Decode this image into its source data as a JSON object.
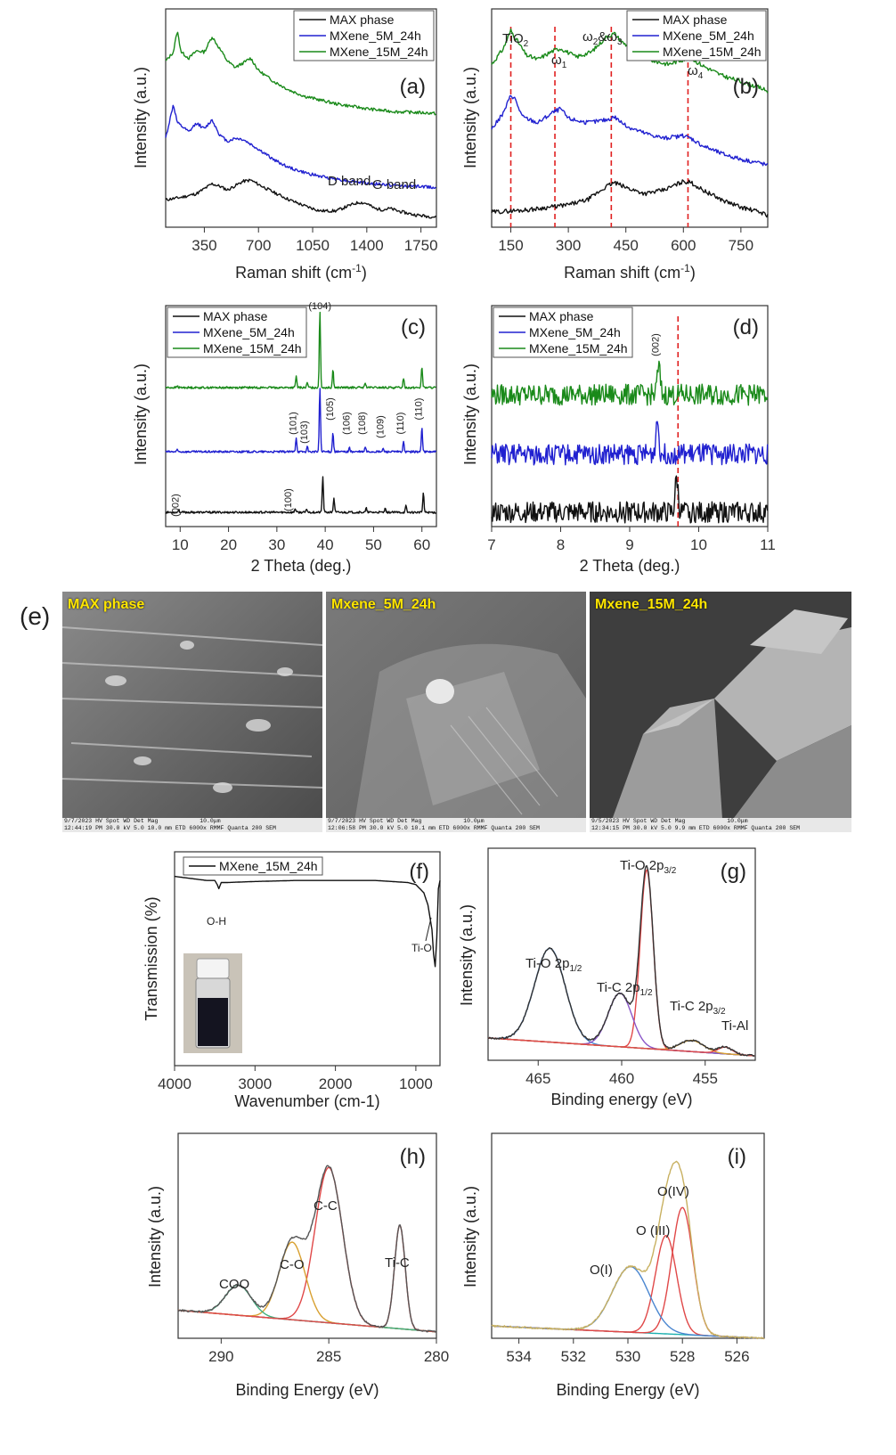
{
  "colors": {
    "max_phase": "#111111",
    "mxene_5m": "#2020d0",
    "mxene_15m": "#1a8a1a",
    "ref_line": "#e02020",
    "fit_red": "#e04848",
    "fit_purple": "#8a56c8",
    "fit_blue": "#4a86d0",
    "fit_cyan": "#1cb0b0",
    "fit_orange": "#d8a030",
    "fit_green": "#40b080",
    "fit_envelope": "#c8b060"
  },
  "legend": {
    "max_phase": "MAX phase",
    "mxene_5m": "MXene_5M_24h",
    "mxene_15m": "MXene_15M_24h"
  },
  "panels": {
    "a": {
      "letter": "(a)",
      "xlabel": "Raman shift (cm",
      "xlabel_sup": "-1",
      "xlabel_close": ")",
      "ylabel": "Intensity (a.u.)",
      "ticks": [
        "350",
        "700",
        "1050",
        "1400",
        "1750"
      ],
      "annotations": {
        "d_band": "D band",
        "g_band": "G band"
      }
    },
    "b": {
      "letter": "(b)",
      "xlabel": "Raman shift (cm",
      "xlabel_sup": "-1",
      "xlabel_close": ")",
      "ylabel": "Intensity (a.u.)",
      "ticks": [
        "150",
        "300",
        "450",
        "600",
        "750"
      ],
      "annotations": {
        "tio2": "TiO",
        "tio2_sub": "2",
        "w1": "ω",
        "w1_sub": "1",
        "w23_a": "ω",
        "w23_sub_a": "2",
        "w23_amp": "&ω",
        "w23_sub_b": "3",
        "w4": "ω",
        "w4_sub": "4"
      }
    },
    "c": {
      "letter": "(c)",
      "xlabel": "2 Theta (deg.)",
      "ylabel": "Intensity (a.u.)",
      "ticks": [
        "10",
        "20",
        "30",
        "40",
        "50",
        "60"
      ],
      "peak_labels_top": [
        "(104)"
      ],
      "peak_labels_blue": [
        "(101)",
        "(103)",
        "(105)",
        "(106)",
        "(108)",
        "(109)",
        "(110)",
        "(110)"
      ],
      "peak_labels_black": [
        "(002)",
        "(100)"
      ]
    },
    "d": {
      "letter": "(d)",
      "xlabel": "2 Theta (deg.)",
      "ylabel": "Intensity (a.u.)",
      "ticks": [
        "7",
        "8",
        "9",
        "10",
        "11"
      ],
      "peak_label": "(002)"
    },
    "e": {
      "letter": "(e)",
      "images": [
        {
          "caption": "MAX phase",
          "bar": [
            "9/7/2023",
            "HV",
            "Spot",
            "WD",
            "Det",
            "Mag",
            "10.0μm"
          ],
          "bar2": "12:44:19 PM 30.0 kV  5.0  10.0 mm ETD 6000x     RMMF Quanta 200 SEM"
        },
        {
          "caption": "Mxene_5M_24h",
          "bar": [
            "9/7/2023",
            "HV",
            "Spot",
            "WD",
            "Det",
            "Mag",
            "10.0μm"
          ],
          "bar2": "12:06:58 PM 30.0 kV  5.0  10.1 mm ETD 6000x     RMMF Quanta 200 SEM"
        },
        {
          "caption": "Mxene_15M_24h",
          "bar": [
            "9/5/2023",
            "HV",
            "Spot",
            "WD",
            "Det",
            "Mag",
            "10.0μm"
          ],
          "bar2": "12:34:15 PM 30.0 kV  5.0  9.9 mm ETD 6000x      RMMF Quanta 200 SEM"
        }
      ]
    },
    "f": {
      "letter": "(f)",
      "xlabel": "Wavenumber (cm-1)",
      "ylabel": "Transmission (%)",
      "legend": "MXene_15M_24h",
      "ticks": [
        "4000",
        "3000",
        "2000",
        "1000"
      ],
      "annotations": {
        "oh": "O-H",
        "tio": "Ti-O"
      }
    },
    "g": {
      "letter": "(g)",
      "xlabel": "Binding energy (eV)",
      "ylabel": "Intensity (a.u.)",
      "ticks": [
        "465",
        "460",
        "455"
      ],
      "annotations": {
        "tio_32": "Ti-O 2p",
        "tio_32_sub": "3/2",
        "tio_12": "Ti-O 2p",
        "tio_12_sub": "1/2",
        "tic_12": "Ti-C 2p",
        "tic_12_sub": "1/2",
        "tic_32": "Ti-C 2p",
        "tic_32_sub": "3/2",
        "tial": "Ti-Al"
      }
    },
    "h": {
      "letter": "(h)",
      "xlabel": "Binding Energy (eV)",
      "ylabel": "Intensity (a.u.)",
      "ticks": [
        "290",
        "285",
        "280"
      ],
      "annotations": {
        "cc": "C-C",
        "co": "C-O",
        "coo": "COO",
        "tic": "Ti-C"
      }
    },
    "i": {
      "letter": "(i)",
      "xlabel": "Binding Energy (eV)",
      "ylabel": "Intensity (a.u.)",
      "ticks": [
        "534",
        "532",
        "530",
        "528",
        "526"
      ],
      "annotations": {
        "oiv": "O(IV)",
        "oiii": "O (III)",
        "oi": "O(I)"
      }
    }
  },
  "chart_data": [
    {
      "panel": "a",
      "type": "line",
      "xlabel": "Raman shift (cm-1)",
      "ylabel": "Intensity (a.u.)",
      "xlim": [
        100,
        1850
      ],
      "grid": false,
      "legend_position": "top-right",
      "series": [
        {
          "name": "MAX phase",
          "x": [
            100,
            200,
            300,
            400,
            450,
            500,
            600,
            650,
            700,
            800,
            900,
            1000,
            1100,
            1200,
            1250,
            1300,
            1350,
            1400,
            1450,
            1500,
            1550,
            1600,
            1700,
            1800,
            1850
          ],
          "y": [
            0.3,
            0.34,
            0.4,
            0.56,
            0.52,
            0.46,
            0.6,
            0.62,
            0.55,
            0.42,
            0.3,
            0.2,
            0.12,
            0.12,
            0.17,
            0.22,
            0.26,
            0.24,
            0.16,
            0.14,
            0.16,
            0.12,
            0.06,
            0.03,
            0.02
          ]
        },
        {
          "name": "MXene_5M_24h",
          "x": [
            100,
            150,
            175,
            200,
            250,
            300,
            350,
            400,
            450,
            500,
            550,
            600,
            700,
            800,
            900,
            1000,
            1100,
            1200,
            1300,
            1400,
            1500,
            1600,
            1700,
            1800,
            1850
          ],
          "y": [
            1.3,
            1.85,
            1.55,
            1.5,
            1.4,
            1.55,
            1.45,
            1.6,
            1.35,
            1.25,
            1.3,
            1.28,
            1.12,
            0.95,
            0.82,
            0.74,
            0.68,
            0.64,
            0.6,
            0.57,
            0.55,
            0.53,
            0.52,
            0.51,
            0.5
          ]
        },
        {
          "name": "MXene_15M_24h",
          "x": [
            100,
            150,
            175,
            200,
            250,
            300,
            350,
            400,
            450,
            500,
            550,
            600,
            650,
            700,
            800,
            900,
            1000,
            1100,
            1200,
            1300,
            1400,
            1500,
            1600,
            1700,
            1800,
            1850
          ],
          "y": [
            2.55,
            2.7,
            3.05,
            2.7,
            2.6,
            2.72,
            2.7,
            2.95,
            2.75,
            2.55,
            2.45,
            2.52,
            2.6,
            2.4,
            2.22,
            2.08,
            1.98,
            1.92,
            1.86,
            1.82,
            1.78,
            1.75,
            1.73,
            1.72,
            1.71,
            1.7
          ]
        }
      ],
      "annotations": [
        {
          "text": "D band",
          "x": 1350
        },
        {
          "text": "G band",
          "x": 1580
        }
      ]
    },
    {
      "panel": "b",
      "type": "line",
      "xlabel": "Raman shift (cm-1)",
      "ylabel": "Intensity (a.u.)",
      "xlim": [
        100,
        820
      ],
      "reference_lines_x": [
        150,
        265,
        412,
        612
      ],
      "grid": false,
      "legend_position": "top-right",
      "series": [
        {
          "name": "MAX phase",
          "x": [
            100,
            150,
            200,
            250,
            300,
            350,
            400,
            420,
            450,
            500,
            550,
            600,
            620,
            650,
            700,
            750,
            800,
            820
          ],
          "y": [
            0.1,
            0.12,
            0.14,
            0.18,
            0.22,
            0.3,
            0.52,
            0.58,
            0.5,
            0.4,
            0.46,
            0.6,
            0.58,
            0.46,
            0.3,
            0.18,
            0.1,
            0.05
          ]
        },
        {
          "name": "MXene_5M_24h",
          "x": [
            100,
            130,
            150,
            160,
            180,
            220,
            260,
            280,
            300,
            350,
            400,
            420,
            450,
            500,
            550,
            600,
            620,
            650,
            700,
            750,
            800,
            820
          ],
          "y": [
            1.45,
            1.7,
            2.0,
            1.95,
            1.65,
            1.55,
            1.72,
            1.78,
            1.62,
            1.55,
            1.6,
            1.65,
            1.5,
            1.38,
            1.3,
            1.34,
            1.3,
            1.18,
            1.05,
            0.96,
            0.9,
            0.86
          ]
        },
        {
          "name": "MXene_15M_24h",
          "x": [
            100,
            130,
            150,
            160,
            190,
            220,
            260,
            280,
            320,
            360,
            400,
            420,
            440,
            480,
            520,
            560,
            600,
            620,
            650,
            700,
            750,
            800,
            820
          ],
          "y": [
            2.5,
            2.75,
            3.05,
            2.95,
            2.65,
            2.58,
            2.72,
            2.76,
            2.62,
            2.7,
            2.95,
            3.0,
            2.86,
            2.7,
            2.56,
            2.5,
            2.58,
            2.6,
            2.48,
            2.32,
            2.22,
            2.12,
            2.06
          ]
        }
      ],
      "annotations": [
        {
          "text": "TiO2",
          "x": 150
        },
        {
          "text": "ω1",
          "x": 265
        },
        {
          "text": "ω2&ω3",
          "x": 412
        },
        {
          "text": "ω4",
          "x": 612
        }
      ]
    },
    {
      "panel": "c",
      "type": "line",
      "xlabel": "2 Theta (deg.)",
      "ylabel": "Intensity (a.u.)",
      "xlim": [
        7,
        63
      ],
      "grid": false,
      "legend_position": "top-left",
      "series": [
        {
          "name": "MAX phase",
          "peaks_x": [
            9.7,
            33.8,
            36.2,
            39.5,
            41.8,
            48.5,
            52.4,
            56.7,
            60.3
          ],
          "peaks_h": [
            0.03,
            0.05,
            0.04,
            0.45,
            0.18,
            0.05,
            0.04,
            0.08,
            0.24
          ],
          "baseline": 0
        },
        {
          "name": "MXene_5M_24h",
          "peaks_x": [
            9.4,
            34.0,
            36.3,
            38.9,
            41.6,
            45.0,
            48.3,
            52.0,
            56.2,
            60.0
          ],
          "peaks_h": [
            0.02,
            0.18,
            0.06,
            0.8,
            0.24,
            0.05,
            0.06,
            0.04,
            0.12,
            0.3
          ],
          "baseline": 1
        },
        {
          "name": "MXene_15M_24h",
          "peaks_x": [
            9.4,
            34.0,
            36.3,
            38.9,
            41.6,
            48.3,
            56.2,
            60.0
          ],
          "peaks_h": [
            0.02,
            0.14,
            0.06,
            0.95,
            0.22,
            0.06,
            0.12,
            0.26
          ],
          "baseline": 2
        }
      ],
      "peak_labels": [
        {
          "text": "(104)",
          "x": 38.9
        },
        {
          "text": "(101)",
          "x": 34.0
        },
        {
          "text": "(103)",
          "x": 36.3
        },
        {
          "text": "(105)",
          "x": 41.6
        },
        {
          "text": "(106)",
          "x": 45.0
        },
        {
          "text": "(108)",
          "x": 48.3
        },
        {
          "text": "(109)",
          "x": 52.0
        },
        {
          "text": "(110)",
          "x": 56.2
        },
        {
          "text": "(110)",
          "x": 60.0
        },
        {
          "text": "(002)",
          "x": 9.7
        },
        {
          "text": "(100)",
          "x": 33.0
        }
      ]
    },
    {
      "panel": "d",
      "type": "line",
      "xlabel": "2 Theta (deg.)",
      "ylabel": "Intensity (a.u.)",
      "xlim": [
        7,
        11
      ],
      "reference_lines_x": [
        9.7
      ],
      "grid": false,
      "legend_position": "top-left",
      "series": [
        {
          "name": "MAX phase",
          "peak_x": 9.68,
          "peak_h": 0.55,
          "baseline": 0
        },
        {
          "name": "MXene_5M_24h",
          "peak_x": 9.4,
          "peak_h": 0.55,
          "baseline": 1
        },
        {
          "name": "MXene_15M_24h",
          "peak_x": 9.42,
          "peak_h": 0.45,
          "baseline": 2
        }
      ],
      "peak_labels": [
        {
          "text": "(002)",
          "x": 9.42
        }
      ]
    },
    {
      "panel": "f",
      "type": "line",
      "xlabel": "Wavenumber (cm-1)",
      "ylabel": "Transmission (%)",
      "xlim": [
        4000,
        700
      ],
      "grid": false,
      "legend_position": "top-left",
      "series": [
        {
          "name": "MXene_15M_24h",
          "x": [
            4000,
            3800,
            3600,
            3500,
            3470,
            3450,
            3420,
            3350,
            3000,
            2500,
            2000,
            1500,
            1300,
            1100,
            1000,
            900,
            850,
            800,
            780,
            760,
            740,
            720,
            700
          ],
          "y": [
            0.88,
            0.87,
            0.86,
            0.86,
            0.84,
            0.82,
            0.85,
            0.85,
            0.855,
            0.86,
            0.86,
            0.86,
            0.855,
            0.85,
            0.84,
            0.8,
            0.74,
            0.62,
            0.5,
            0.44,
            0.58,
            0.82,
            0.86
          ]
        }
      ],
      "annotations": [
        {
          "text": "O-H",
          "x": 3450
        },
        {
          "text": "Ti-O",
          "x": 760
        }
      ]
    },
    {
      "panel": "g",
      "type": "line",
      "xlabel": "Binding energy (eV)",
      "ylabel": "Intensity (a.u.)",
      "xlim": [
        468,
        452
      ],
      "grid": false,
      "components": [
        {
          "label": "Ti-O 2p3/2",
          "center": 458.5,
          "height": 0.8,
          "width": 0.55
        },
        {
          "label": "Ti-O 2p1/2",
          "center": 464.3,
          "height": 0.42,
          "width": 1.3
        },
        {
          "label": "Ti-C 2p1/2",
          "center": 460.1,
          "height": 0.24,
          "width": 1.0
        },
        {
          "label": "Ti-C 2p3/2",
          "center": 455.8,
          "height": 0.05,
          "width": 1.0
        },
        {
          "label": "Ti-Al",
          "center": 453.8,
          "height": 0.03,
          "width": 0.6
        }
      ],
      "background": {
        "x": [
          468,
          452
        ],
        "y": [
          0.1,
          0.02
        ]
      }
    },
    {
      "panel": "h",
      "type": "line",
      "xlabel": "Binding Energy (eV)",
      "ylabel": "Intensity (a.u.)",
      "xlim": [
        292,
        280
      ],
      "grid": false,
      "components": [
        {
          "label": "C-C",
          "center": 285.0,
          "height": 0.72,
          "width": 0.9
        },
        {
          "label": "C-O",
          "center": 286.7,
          "height": 0.36,
          "width": 0.85
        },
        {
          "label": "COO",
          "center": 289.2,
          "height": 0.14,
          "width": 0.85
        },
        {
          "label": "Ti-C",
          "center": 281.7,
          "height": 0.48,
          "width": 0.35
        }
      ],
      "background": {
        "x": [
          292,
          280
        ],
        "y": [
          0.13,
          0.03
        ]
      }
    },
    {
      "panel": "i",
      "type": "line",
      "xlabel": "Binding Energy (eV)",
      "ylabel": "Intensity (a.u.)",
      "xlim": [
        535,
        525
      ],
      "grid": false,
      "components": [
        {
          "label": "O(IV)",
          "center": 528.0,
          "height": 0.62,
          "width": 0.55
        },
        {
          "label": "O (III)",
          "center": 528.6,
          "height": 0.48,
          "width": 0.55
        },
        {
          "label": "O(I)",
          "center": 529.9,
          "height": 0.32,
          "width": 0.95
        }
      ],
      "background": {
        "x": [
          535,
          525
        ],
        "y": [
          0.06,
          0.0
        ]
      }
    }
  ]
}
